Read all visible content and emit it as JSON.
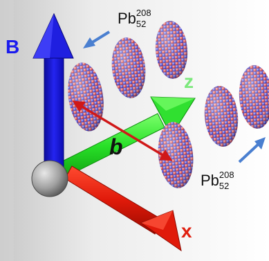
{
  "axes": {
    "b_field_label": "B",
    "z_label": "z",
    "x_label": "x",
    "impact_parameter_label": "b"
  },
  "nuclei": {
    "symbol": "Pb",
    "mass_number": "208",
    "atomic_number": "52"
  },
  "colors": {
    "b_axis": "#1a1aee",
    "z_axis": "#22e622",
    "x_axis": "#e02010",
    "impact_arrow": "#d01818",
    "pointer_arrow": "#4a7fd0",
    "nucleon_red": "#e05858",
    "nucleon_blue": "#5858d8",
    "origin_sphere": "#9a9a9a"
  }
}
